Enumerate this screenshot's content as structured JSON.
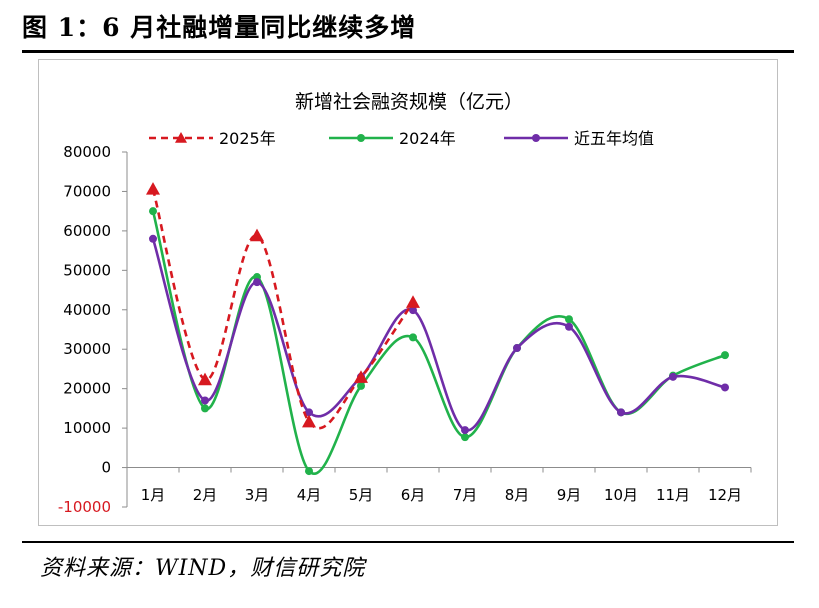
{
  "figure_title": "图 1：6 月社融增量同比继续多增",
  "source_note": "资料来源：WIND，财信研究院",
  "chart_data": {
    "type": "line",
    "title": "新增社会融资规模（亿元）",
    "xlabel": "",
    "ylabel": "",
    "categories": [
      "1月",
      "2月",
      "3月",
      "4月",
      "5月",
      "6月",
      "7月",
      "8月",
      "9月",
      "10月",
      "11月",
      "12月"
    ],
    "ylim": [
      -10000,
      80000
    ],
    "yticks": [
      -10000,
      0,
      10000,
      20000,
      30000,
      40000,
      50000,
      60000,
      70000,
      80000
    ],
    "grid": false,
    "legend_position": "top",
    "series": [
      {
        "name": "2025年",
        "color": "#d71920",
        "style": "dashed",
        "marker": "triangle",
        "values": [
          70600,
          22300,
          58800,
          11600,
          22900,
          41900,
          null,
          null,
          null,
          null,
          null,
          null
        ]
      },
      {
        "name": "2024年",
        "color": "#21b24b",
        "style": "solid",
        "marker": "circle",
        "values": [
          65000,
          15000,
          48300,
          -900,
          20700,
          33000,
          7700,
          30300,
          37600,
          14000,
          23300,
          28500
        ]
      },
      {
        "name": "近五年均值",
        "color": "#6f2da8",
        "style": "solid",
        "marker": "circle",
        "values": [
          58000,
          17000,
          47000,
          14000,
          23000,
          39900,
          9500,
          30300,
          35700,
          14000,
          23000,
          20300
        ]
      }
    ]
  }
}
